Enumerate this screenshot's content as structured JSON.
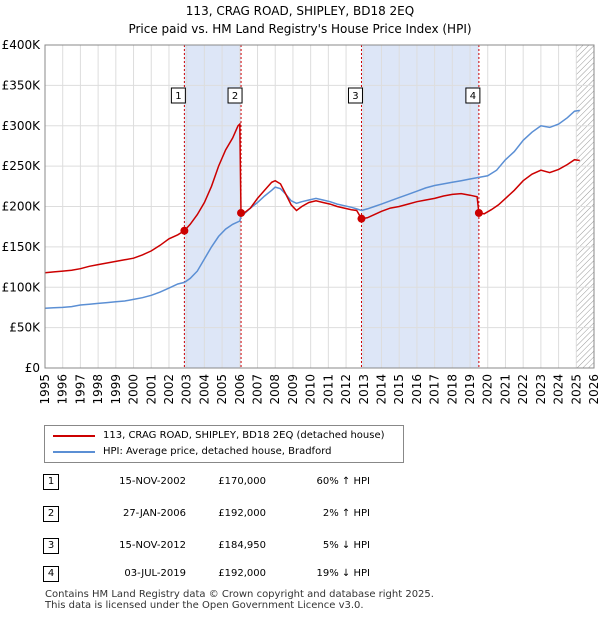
{
  "title_line1": "113, CRAG ROAD, SHIPLEY, BD18 2EQ",
  "title_line2": "Price paid vs. HM Land Registry's House Price Index (HPI)",
  "chart_data": {
    "type": "line",
    "title": "113, CRAG ROAD, SHIPLEY, BD18 2EQ",
    "subtitle": "Price paid vs. HM Land Registry's House Price Index (HPI)",
    "xlim": [
      1995,
      2026
    ],
    "ylim": [
      0,
      400000
    ],
    "y_ticks": [
      0,
      50000,
      100000,
      150000,
      200000,
      250000,
      300000,
      350000,
      400000
    ],
    "y_tick_labels": [
      "£0",
      "£50K",
      "£100K",
      "£150K",
      "£200K",
      "£250K",
      "£300K",
      "£350K",
      "£400K"
    ],
    "x_ticks": [
      "1995",
      "1996",
      "1997",
      "1998",
      "1999",
      "2000",
      "2001",
      "2002",
      "2003",
      "2004",
      "2005",
      "2006",
      "2007",
      "2008",
      "2009",
      "2010",
      "2011",
      "2012",
      "2013",
      "2014",
      "2015",
      "2016",
      "2017",
      "2018",
      "2019",
      "2020",
      "2021",
      "2022",
      "2023",
      "2024",
      "2025",
      "2026"
    ],
    "shaded_spans": [
      [
        2002.87,
        2006.07
      ],
      [
        2012.87,
        2019.5
      ]
    ],
    "future_hatch_from": 2025.0,
    "series": [
      {
        "name": "113, CRAG ROAD, SHIPLEY, BD18 2EQ (detached house)",
        "color": "#cc0000",
        "points": [
          [
            1995.0,
            118000
          ],
          [
            1995.5,
            119000
          ],
          [
            1996.0,
            120000
          ],
          [
            1996.5,
            121000
          ],
          [
            1997.0,
            123000
          ],
          [
            1997.5,
            126000
          ],
          [
            1998.0,
            128000
          ],
          [
            1998.5,
            130000
          ],
          [
            1999.0,
            132000
          ],
          [
            1999.5,
            134000
          ],
          [
            2000.0,
            136000
          ],
          [
            2000.5,
            140000
          ],
          [
            2001.0,
            145000
          ],
          [
            2001.5,
            152000
          ],
          [
            2002.0,
            160000
          ],
          [
            2002.5,
            165000
          ],
          [
            2002.87,
            170000
          ],
          [
            2003.2,
            178000
          ],
          [
            2003.6,
            190000
          ],
          [
            2004.0,
            205000
          ],
          [
            2004.4,
            225000
          ],
          [
            2004.8,
            250000
          ],
          [
            2005.2,
            270000
          ],
          [
            2005.6,
            285000
          ],
          [
            2005.9,
            300000
          ],
          [
            2006.0,
            302000
          ],
          [
            2006.07,
            192000
          ],
          [
            2006.3,
            193000
          ],
          [
            2006.6,
            198000
          ],
          [
            2007.0,
            210000
          ],
          [
            2007.4,
            220000
          ],
          [
            2007.8,
            230000
          ],
          [
            2008.0,
            232000
          ],
          [
            2008.3,
            228000
          ],
          [
            2008.6,
            215000
          ],
          [
            2008.9,
            202000
          ],
          [
            2009.2,
            195000
          ],
          [
            2009.5,
            200000
          ],
          [
            2009.9,
            205000
          ],
          [
            2010.3,
            207000
          ],
          [
            2010.7,
            205000
          ],
          [
            2011.1,
            203000
          ],
          [
            2011.5,
            200000
          ],
          [
            2011.9,
            198000
          ],
          [
            2012.3,
            196000
          ],
          [
            2012.6,
            195000
          ],
          [
            2012.87,
            184950
          ],
          [
            2013.2,
            186000
          ],
          [
            2013.6,
            190000
          ],
          [
            2014.0,
            194000
          ],
          [
            2014.5,
            198000
          ],
          [
            2015.0,
            200000
          ],
          [
            2015.5,
            203000
          ],
          [
            2016.0,
            206000
          ],
          [
            2016.5,
            208000
          ],
          [
            2017.0,
            210000
          ],
          [
            2017.5,
            213000
          ],
          [
            2018.0,
            215000
          ],
          [
            2018.5,
            216000
          ],
          [
            2019.0,
            214000
          ],
          [
            2019.4,
            212000
          ],
          [
            2019.5,
            192000
          ],
          [
            2019.8,
            191000
          ],
          [
            2020.2,
            196000
          ],
          [
            2020.6,
            202000
          ],
          [
            2021.0,
            210000
          ],
          [
            2021.5,
            220000
          ],
          [
            2022.0,
            232000
          ],
          [
            2022.5,
            240000
          ],
          [
            2023.0,
            245000
          ],
          [
            2023.5,
            242000
          ],
          [
            2024.0,
            246000
          ],
          [
            2024.5,
            252000
          ],
          [
            2024.9,
            258000
          ],
          [
            2025.2,
            257000
          ]
        ]
      },
      {
        "name": "HPI: Average price, detached house, Bradford",
        "color": "#5b8fd4",
        "points": [
          [
            1995.0,
            74000
          ],
          [
            1995.5,
            74500
          ],
          [
            1996.0,
            75000
          ],
          [
            1996.5,
            76000
          ],
          [
            1997.0,
            78000
          ],
          [
            1997.5,
            79000
          ],
          [
            1998.0,
            80000
          ],
          [
            1998.5,
            81000
          ],
          [
            1999.0,
            82000
          ],
          [
            1999.5,
            83000
          ],
          [
            2000.0,
            85000
          ],
          [
            2000.5,
            87000
          ],
          [
            2001.0,
            90000
          ],
          [
            2001.5,
            94000
          ],
          [
            2002.0,
            99000
          ],
          [
            2002.5,
            104000
          ],
          [
            2002.87,
            106000
          ],
          [
            2003.2,
            111000
          ],
          [
            2003.6,
            120000
          ],
          [
            2004.0,
            135000
          ],
          [
            2004.4,
            150000
          ],
          [
            2004.8,
            163000
          ],
          [
            2005.2,
            172000
          ],
          [
            2005.6,
            178000
          ],
          [
            2006.0,
            182000
          ],
          [
            2006.07,
            188000
          ],
          [
            2006.3,
            192000
          ],
          [
            2006.6,
            198000
          ],
          [
            2007.0,
            205000
          ],
          [
            2007.4,
            213000
          ],
          [
            2007.8,
            220000
          ],
          [
            2008.0,
            224000
          ],
          [
            2008.3,
            222000
          ],
          [
            2008.6,
            215000
          ],
          [
            2008.9,
            207000
          ],
          [
            2009.2,
            204000
          ],
          [
            2009.5,
            206000
          ],
          [
            2009.9,
            208000
          ],
          [
            2010.3,
            210000
          ],
          [
            2010.7,
            208000
          ],
          [
            2011.1,
            206000
          ],
          [
            2011.5,
            203000
          ],
          [
            2011.9,
            201000
          ],
          [
            2012.3,
            199000
          ],
          [
            2012.6,
            197000
          ],
          [
            2012.87,
            195000
          ],
          [
            2013.2,
            197000
          ],
          [
            2013.6,
            200000
          ],
          [
            2014.0,
            203000
          ],
          [
            2014.5,
            207000
          ],
          [
            2015.0,
            211000
          ],
          [
            2015.5,
            215000
          ],
          [
            2016.0,
            219000
          ],
          [
            2016.5,
            223000
          ],
          [
            2017.0,
            226000
          ],
          [
            2017.5,
            228000
          ],
          [
            2018.0,
            230000
          ],
          [
            2018.5,
            232000
          ],
          [
            2019.0,
            234000
          ],
          [
            2019.5,
            236000
          ],
          [
            2020.0,
            238000
          ],
          [
            2020.5,
            245000
          ],
          [
            2021.0,
            258000
          ],
          [
            2021.5,
            268000
          ],
          [
            2022.0,
            282000
          ],
          [
            2022.5,
            292000
          ],
          [
            2023.0,
            300000
          ],
          [
            2023.5,
            298000
          ],
          [
            2024.0,
            302000
          ],
          [
            2024.5,
            310000
          ],
          [
            2024.9,
            318000
          ],
          [
            2025.2,
            319000
          ]
        ]
      }
    ],
    "sales": [
      {
        "label": "1",
        "x": 2002.87,
        "value": 170000
      },
      {
        "label": "2",
        "x": 2006.07,
        "value": 192000
      },
      {
        "label": "3",
        "x": 2012.87,
        "value": 184950
      },
      {
        "label": "4",
        "x": 2019.5,
        "value": 192000
      }
    ],
    "sale_marker_color": "#cc0000",
    "shade_color": "#dde6f7"
  },
  "legend": {
    "items": [
      {
        "label": "113, CRAG ROAD, SHIPLEY, BD18 2EQ (detached house)",
        "color": "#cc0000"
      },
      {
        "label": "HPI: Average price, detached house, Bradford",
        "color": "#5b8fd4"
      }
    ]
  },
  "sales_table": [
    {
      "num": "1",
      "date": "15-NOV-2002",
      "price": "£170,000",
      "hpi": "60% ↑ HPI"
    },
    {
      "num": "2",
      "date": "27-JAN-2006",
      "price": "£192,000",
      "hpi": "2% ↑ HPI"
    },
    {
      "num": "3",
      "date": "15-NOV-2012",
      "price": "£184,950",
      "hpi": "5% ↓ HPI"
    },
    {
      "num": "4",
      "date": "03-JUL-2019",
      "price": "£192,000",
      "hpi": "19% ↓ HPI"
    }
  ],
  "footer": {
    "line1": "Contains HM Land Registry data © Crown copyright and database right 2025.",
    "line2": "This data is licensed under the Open Government Licence v3.0."
  }
}
